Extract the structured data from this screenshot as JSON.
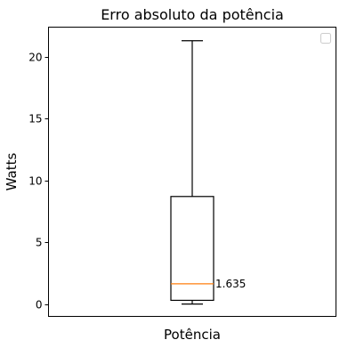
{
  "chart_data": {
    "type": "box",
    "title": "Erro absoluto da potência",
    "xlabel": "Potência",
    "ylabel": "Watts",
    "categories": [
      "Potência"
    ],
    "ylim": [
      -1.0,
      22.4
    ],
    "yticks": [
      0,
      5,
      10,
      15,
      20
    ],
    "box": {
      "whisker_low": 0.0,
      "q1": 0.3,
      "median": 1.635,
      "q3": 8.7,
      "whisker_high": 21.3
    },
    "median_label": "1.635",
    "legend": {
      "placement": "top-right",
      "entries": []
    },
    "grid": false,
    "colors": {
      "box": "#000000",
      "median": "#ff7f0e",
      "axes": "#000000"
    }
  }
}
